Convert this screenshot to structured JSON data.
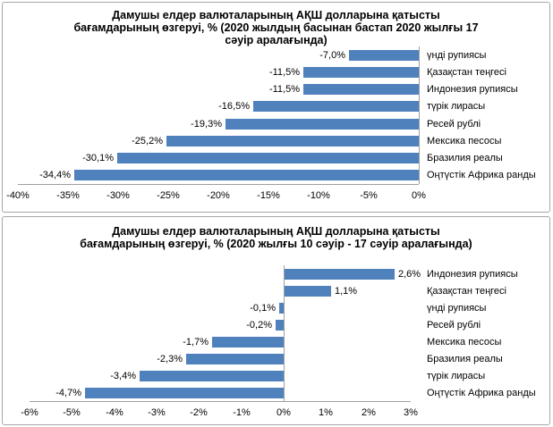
{
  "colors": {
    "bar": "#4f81bd",
    "axis_line": "#9f9f9f",
    "panel_border": "#a8a8a8",
    "text": "#000000",
    "background": "#ffffff"
  },
  "chart_data": [
    {
      "type": "bar",
      "orientation": "horizontal",
      "title": "Дамушы елдер валюталарының АҚШ долларына қатысты\nбағамдарының өзгеруі, %  (2020 жылдың басынан бастап 2020 жылғы 17\nсәуір аралағында)",
      "categories": [
        "үнді рупиясы",
        "Қазақстан теңгесі",
        "Индонезия рупиясы",
        "түрік лирасы",
        "Ресей рублі",
        "Мексика песосы",
        "Бразилия реалы",
        "Оңтүстік Африка ранды"
      ],
      "values": [
        -7.0,
        -11.5,
        -11.5,
        -16.5,
        -19.3,
        -25.2,
        -30.1,
        -34.4
      ],
      "value_labels": [
        "-7,0%",
        "-11,5%",
        "-11,5%",
        "-16,5%",
        "-19,3%",
        "-25,2%",
        "-30,1%",
        "-34,4%"
      ],
      "xlim": [
        -40,
        0
      ],
      "tick_step": 5,
      "tick_labels": [
        "-40%",
        "-35%",
        "-30%",
        "-25%",
        "-20%",
        "-15%",
        "-10%",
        "-5%",
        "0%"
      ],
      "category_labels_position": "right",
      "grid": false,
      "legend": null
    },
    {
      "type": "bar",
      "orientation": "horizontal",
      "title": "Дамушы елдер валюталарының АҚШ долларына қатысты\nбағамдарының өзгеруі, %  (2020 жылғы 10 сәуір - 17 сәуір аралағында)",
      "categories": [
        "Индонезия рупиясы",
        "Қазақстан теңгесі",
        "үнді рупиясы",
        "Ресей рублі",
        "Мексика песосы",
        "Бразилия реалы",
        "түрік лирасы",
        "Оңтүстік Африка ранды"
      ],
      "values": [
        2.6,
        1.1,
        -0.1,
        -0.2,
        -1.7,
        -2.3,
        -3.4,
        -4.7
      ],
      "value_labels": [
        "2,6%",
        "1,1%",
        "-0,1%",
        "-0,2%",
        "-1,7%",
        "-2,3%",
        "-3,4%",
        "-4,7%"
      ],
      "xlim": [
        -6,
        3
      ],
      "tick_step": 1,
      "tick_labels": [
        "-6%",
        "-5%",
        "-4%",
        "-3%",
        "-2%",
        "-1%",
        "0%",
        "1%",
        "2%",
        "3%"
      ],
      "category_labels_position": "right",
      "grid": false,
      "legend": null
    }
  ]
}
